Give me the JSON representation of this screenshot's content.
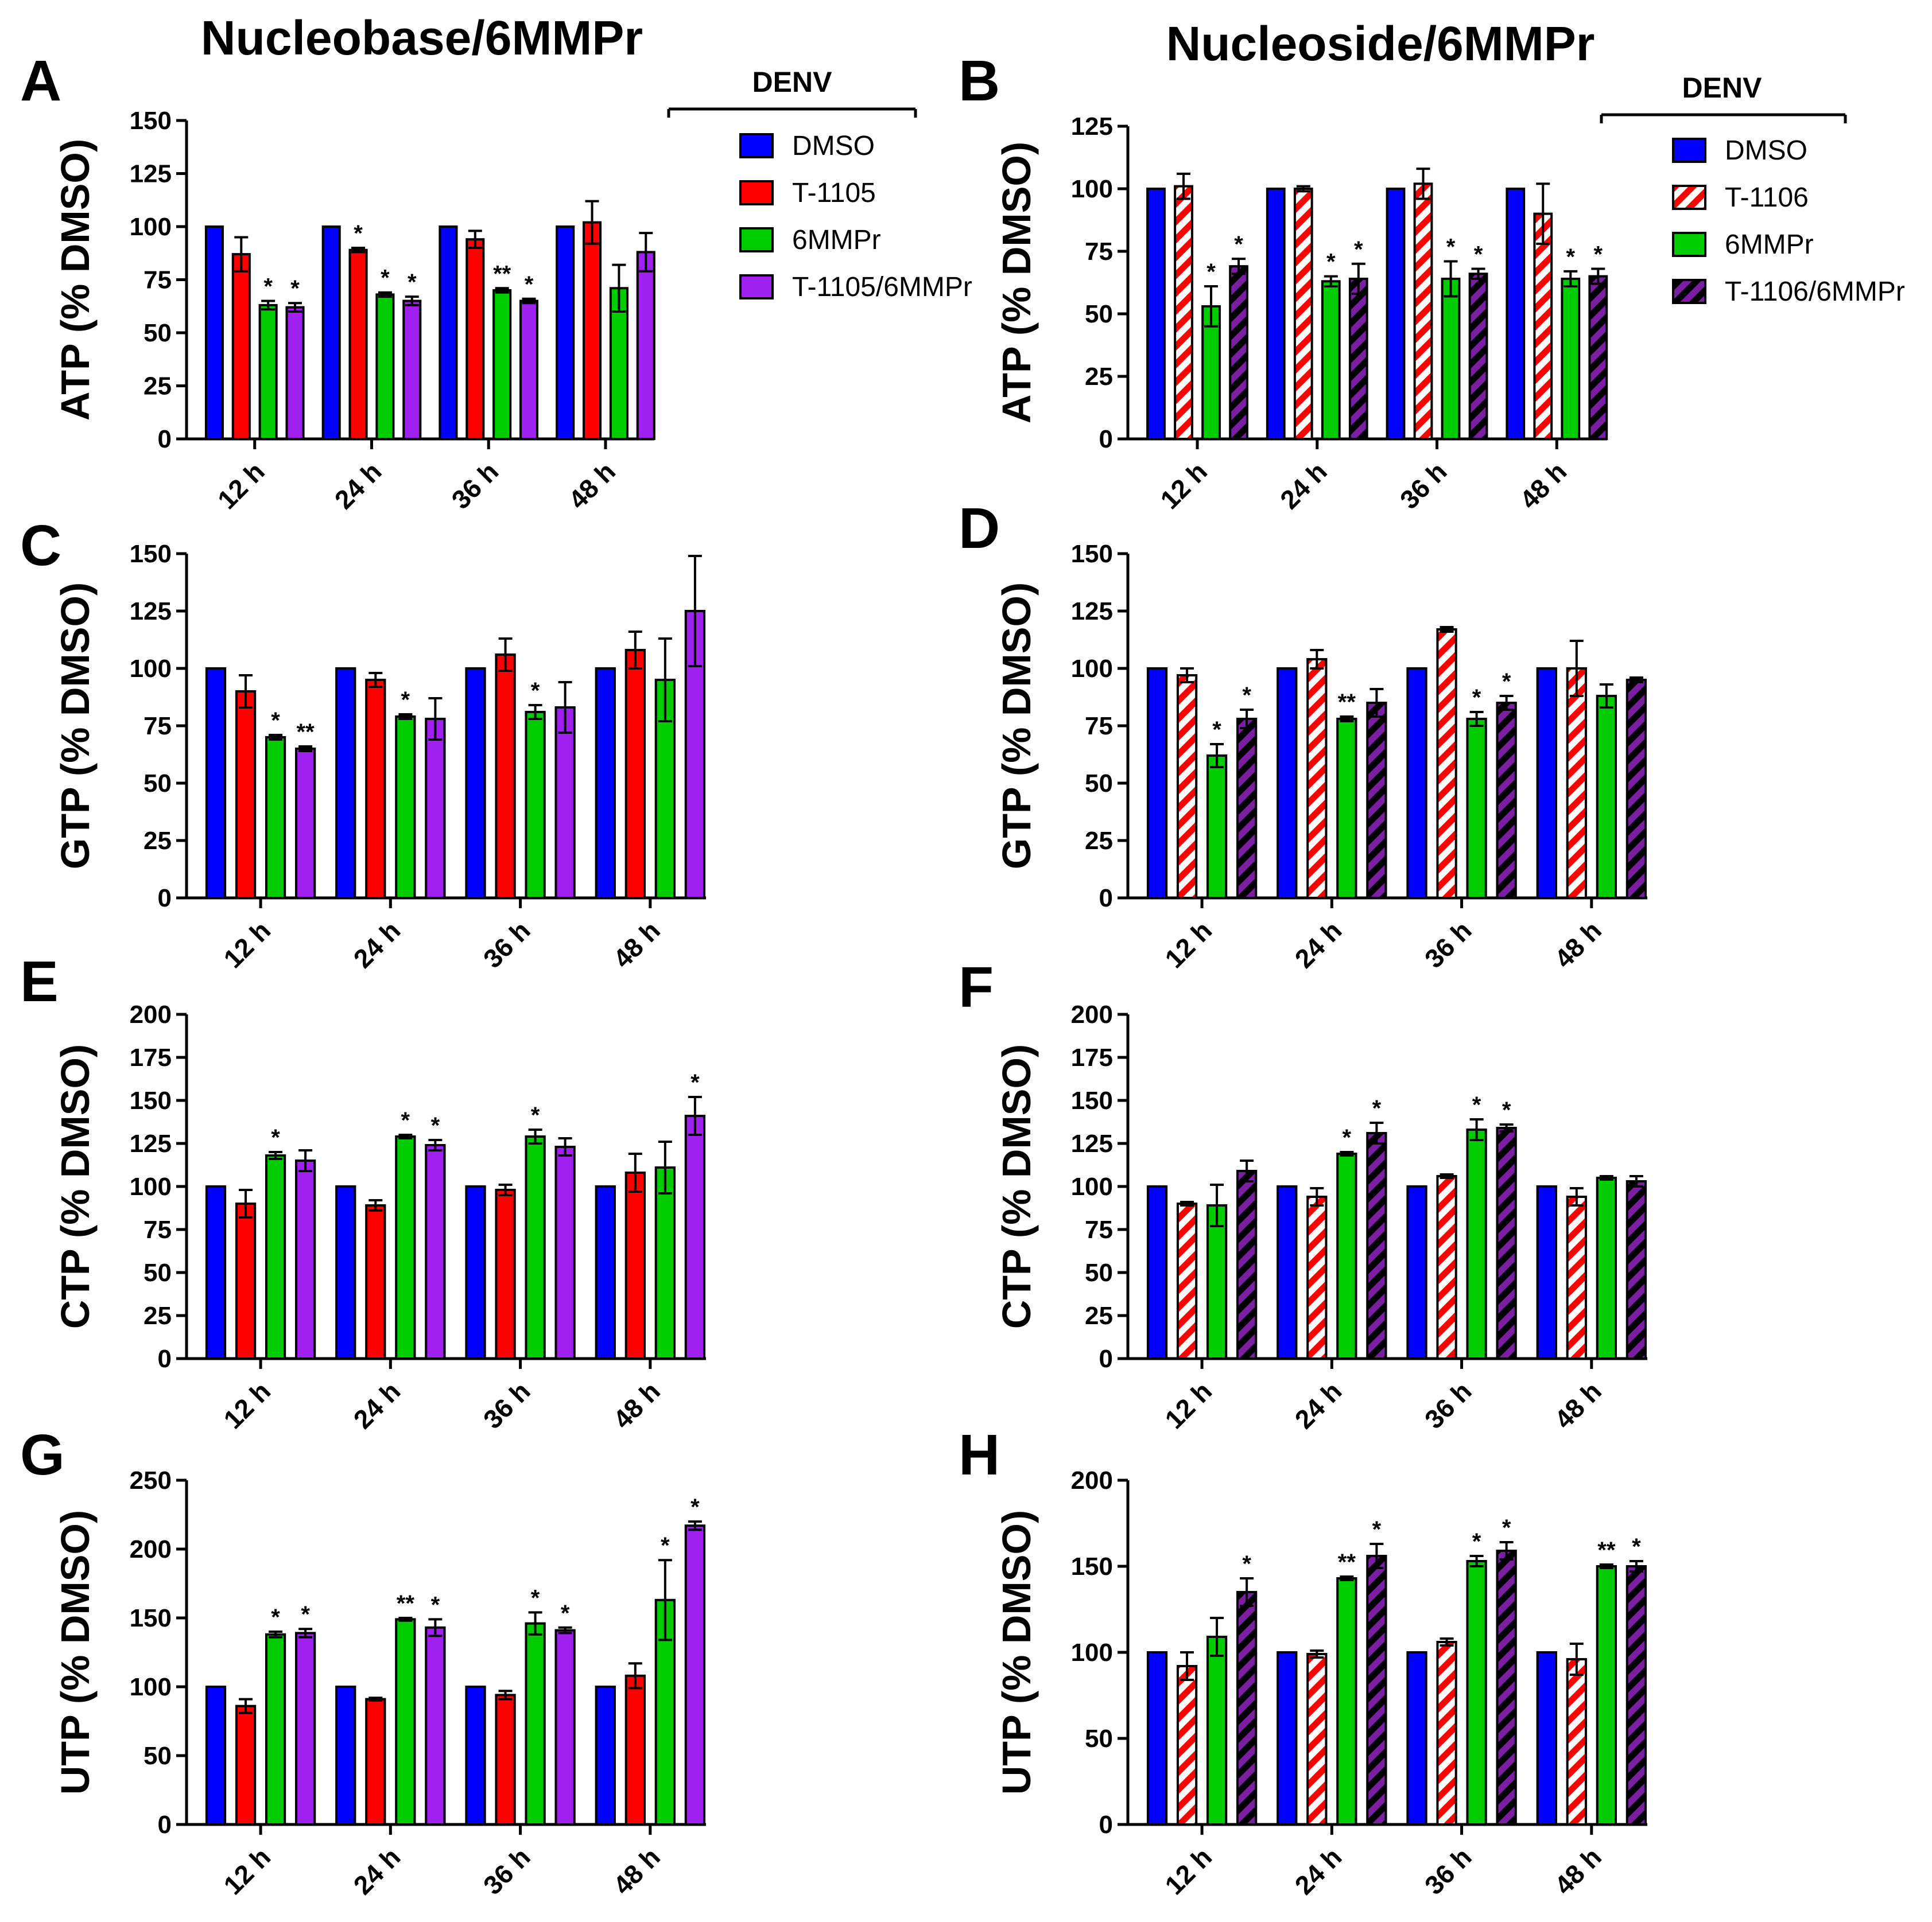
{
  "figure": {
    "col_titles": {
      "left": "Nucleobase/6MMPr",
      "right": "Nucleoside/6MMPr"
    },
    "legends": {
      "left": {
        "title": "DENV",
        "items": [
          {
            "label": "DMSO",
            "color": "#0000ff",
            "pattern": "solid"
          },
          {
            "label": "T-1105",
            "color": "#ff0000",
            "pattern": "solid"
          },
          {
            "label": "6MMPr",
            "color": "#00cc00",
            "pattern": "solid"
          },
          {
            "label": "T-1105/6MMPr",
            "color": "#a020f0",
            "pattern": "solid"
          }
        ]
      },
      "right": {
        "title": "DENV",
        "items": [
          {
            "label": "DMSO",
            "color": "#0000ff",
            "pattern": "solid"
          },
          {
            "label": "T-1106",
            "color": "#ff0000",
            "pattern": "hatch"
          },
          {
            "label": "6MMPr",
            "color": "#00cc00",
            "pattern": "solid"
          },
          {
            "label": "T-1106/6MMPr",
            "color": "#7b1fa2",
            "pattern": "hatch"
          }
        ]
      }
    }
  },
  "chart_data": [
    {
      "panel": "A",
      "type": "bar",
      "ylabel": "ATP (% DMSO)",
      "ylim": [
        0,
        150
      ],
      "yticks": [
        "0",
        "25",
        "50",
        "75",
        "100",
        "125",
        "150"
      ],
      "categories": [
        "12 h",
        "24 h",
        "36 h",
        "48 h"
      ],
      "legend": "left",
      "series": [
        {
          "name": "DMSO",
          "values": [
            100,
            100,
            100,
            100
          ],
          "errors": [
            0,
            0,
            0,
            0
          ],
          "stars": [
            "",
            "",
            "",
            ""
          ]
        },
        {
          "name": "T-1105",
          "values": [
            87,
            89,
            94,
            102
          ],
          "errors": [
            8,
            1,
            4,
            10
          ],
          "stars": [
            "",
            "*",
            "",
            ""
          ]
        },
        {
          "name": "6MMPr",
          "values": [
            63,
            68,
            70,
            71
          ],
          "errors": [
            2,
            1,
            1,
            11
          ],
          "stars": [
            "*",
            "*",
            "**",
            ""
          ]
        },
        {
          "name": "T-1105/6MMPr",
          "values": [
            62,
            65,
            65,
            88
          ],
          "errors": [
            2,
            2,
            1,
            9
          ],
          "stars": [
            "*",
            "*",
            "*",
            ""
          ]
        }
      ]
    },
    {
      "panel": "B",
      "type": "bar",
      "ylabel": "ATP (% DMSO)",
      "ylim": [
        0,
        125
      ],
      "yticks": [
        "0",
        "25",
        "50",
        "75",
        "100",
        "125"
      ],
      "categories": [
        "12 h",
        "24 h",
        "36 h",
        "48 h"
      ],
      "legend": "right",
      "series": [
        {
          "name": "DMSO",
          "values": [
            100,
            100,
            100,
            100
          ],
          "errors": [
            0,
            0,
            0,
            0
          ],
          "stars": [
            "",
            "",
            "",
            ""
          ]
        },
        {
          "name": "T-1106",
          "values": [
            101,
            100,
            102,
            90
          ],
          "errors": [
            5,
            1,
            6,
            12
          ],
          "stars": [
            "",
            "",
            "",
            ""
          ]
        },
        {
          "name": "6MMPr",
          "values": [
            53,
            63,
            64,
            64
          ],
          "errors": [
            8,
            2,
            7,
            3
          ],
          "stars": [
            "*",
            "*",
            "*",
            "*"
          ]
        },
        {
          "name": "T-1106/6MMPr",
          "values": [
            69,
            64,
            66,
            65
          ],
          "errors": [
            3,
            6,
            2,
            3
          ],
          "stars": [
            "*",
            "*",
            "*",
            "*"
          ]
        }
      ]
    },
    {
      "panel": "C",
      "type": "bar",
      "ylabel": "GTP (% DMSO)",
      "ylim": [
        0,
        150
      ],
      "yticks": [
        "0",
        "25",
        "50",
        "75",
        "100",
        "125",
        "150"
      ],
      "categories": [
        "12 h",
        "24 h",
        "36 h",
        "48 h"
      ],
      "legend": "left",
      "series": [
        {
          "name": "DMSO",
          "values": [
            100,
            100,
            100,
            100
          ],
          "errors": [
            0,
            0,
            0,
            0
          ],
          "stars": [
            "",
            "",
            "",
            ""
          ]
        },
        {
          "name": "T-1105",
          "values": [
            90,
            95,
            106,
            108
          ],
          "errors": [
            7,
            3,
            7,
            8
          ],
          "stars": [
            "",
            "",
            "",
            ""
          ]
        },
        {
          "name": "6MMPr",
          "values": [
            70,
            79,
            81,
            95
          ],
          "errors": [
            1,
            1,
            3,
            18
          ],
          "stars": [
            "*",
            "*",
            "*",
            ""
          ]
        },
        {
          "name": "T-1105/6MMPr",
          "values": [
            65,
            78,
            83,
            125
          ],
          "errors": [
            1,
            9,
            11,
            24
          ],
          "stars": [
            "**",
            "",
            "",
            ""
          ]
        }
      ]
    },
    {
      "panel": "D",
      "type": "bar",
      "ylabel": "GTP (% DMSO)",
      "ylim": [
        0,
        150
      ],
      "yticks": [
        "0",
        "25",
        "50",
        "75",
        "100",
        "125",
        "150"
      ],
      "categories": [
        "12 h",
        "24 h",
        "36 h",
        "48 h"
      ],
      "legend": "right",
      "series": [
        {
          "name": "DMSO",
          "values": [
            100,
            100,
            100,
            100
          ],
          "errors": [
            0,
            0,
            0,
            0
          ],
          "stars": [
            "",
            "",
            "",
            ""
          ]
        },
        {
          "name": "T-1106",
          "values": [
            97,
            104,
            117,
            100
          ],
          "errors": [
            3,
            4,
            1,
            12
          ],
          "stars": [
            "",
            "",
            "",
            ""
          ]
        },
        {
          "name": "6MMPr",
          "values": [
            62,
            78,
            78,
            88
          ],
          "errors": [
            5,
            1,
            3,
            5
          ],
          "stars": [
            "*",
            "**",
            "*",
            ""
          ]
        },
        {
          "name": "T-1106/6MMPr",
          "values": [
            78,
            85,
            85,
            95
          ],
          "errors": [
            4,
            6,
            3,
            1
          ],
          "stars": [
            "*",
            "",
            "*",
            ""
          ]
        }
      ]
    },
    {
      "panel": "E",
      "type": "bar",
      "ylabel": "CTP (% DMSO)",
      "ylim": [
        0,
        200
      ],
      "yticks": [
        "0",
        "25",
        "50",
        "75",
        "100",
        "125",
        "150",
        "175",
        "200"
      ],
      "categories": [
        "12 h",
        "24 h",
        "36 h",
        "48 h"
      ],
      "legend": "left",
      "series": [
        {
          "name": "DMSO",
          "values": [
            100,
            100,
            100,
            100
          ],
          "errors": [
            0,
            0,
            0,
            0
          ],
          "stars": [
            "",
            "",
            "",
            ""
          ]
        },
        {
          "name": "T-1105",
          "values": [
            90,
            89,
            98,
            108
          ],
          "errors": [
            8,
            3,
            3,
            11
          ],
          "stars": [
            "",
            "",
            "",
            ""
          ]
        },
        {
          "name": "6MMPr",
          "values": [
            118,
            129,
            129,
            111
          ],
          "errors": [
            2,
            1,
            4,
            15
          ],
          "stars": [
            "*",
            "*",
            "*",
            ""
          ]
        },
        {
          "name": "T-1105/6MMPr",
          "values": [
            115,
            124,
            123,
            141
          ],
          "errors": [
            6,
            3,
            5,
            11
          ],
          "stars": [
            "",
            "*",
            "",
            "*"
          ]
        }
      ]
    },
    {
      "panel": "F",
      "type": "bar",
      "ylabel": "CTP (% DMSO)",
      "ylim": [
        0,
        200
      ],
      "yticks": [
        "0",
        "25",
        "50",
        "75",
        "100",
        "125",
        "150",
        "175",
        "200"
      ],
      "categories": [
        "12 h",
        "24 h",
        "36 h",
        "48 h"
      ],
      "legend": "right",
      "series": [
        {
          "name": "DMSO",
          "values": [
            100,
            100,
            100,
            100
          ],
          "errors": [
            0,
            0,
            0,
            0
          ],
          "stars": [
            "",
            "",
            "",
            ""
          ]
        },
        {
          "name": "T-1106",
          "values": [
            90,
            94,
            106,
            94
          ],
          "errors": [
            1,
            5,
            1,
            5
          ],
          "stars": [
            "",
            "",
            "",
            ""
          ]
        },
        {
          "name": "6MMPr",
          "values": [
            89,
            119,
            133,
            105
          ],
          "errors": [
            12,
            1,
            6,
            1
          ],
          "stars": [
            "",
            "*",
            "*",
            ""
          ]
        },
        {
          "name": "T-1106/6MMPr",
          "values": [
            109,
            131,
            134,
            103
          ],
          "errors": [
            6,
            6,
            2,
            3
          ],
          "stars": [
            "",
            "*",
            "*",
            ""
          ]
        }
      ]
    },
    {
      "panel": "G",
      "type": "bar",
      "ylabel": "UTP (% DMSO)",
      "ylim": [
        0,
        250
      ],
      "yticks": [
        "0",
        "50",
        "100",
        "150",
        "200",
        "250"
      ],
      "categories": [
        "12 h",
        "24 h",
        "36 h",
        "48 h"
      ],
      "legend": "left",
      "series": [
        {
          "name": "DMSO",
          "values": [
            100,
            100,
            100,
            100
          ],
          "errors": [
            0,
            0,
            0,
            0
          ],
          "stars": [
            "",
            "",
            "",
            ""
          ]
        },
        {
          "name": "T-1105",
          "values": [
            86,
            91,
            94,
            108
          ],
          "errors": [
            5,
            1,
            3,
            9
          ],
          "stars": [
            "",
            "",
            "",
            ""
          ]
        },
        {
          "name": "6MMPr",
          "values": [
            138,
            149,
            146,
            163
          ],
          "errors": [
            2,
            1,
            8,
            29
          ],
          "stars": [
            "*",
            "**",
            "*",
            "*"
          ]
        },
        {
          "name": "T-1105/6MMPr",
          "values": [
            139,
            143,
            141,
            217
          ],
          "errors": [
            3,
            6,
            2,
            3
          ],
          "stars": [
            "*",
            "*",
            "*",
            "*"
          ]
        }
      ]
    },
    {
      "panel": "H",
      "type": "bar",
      "ylabel": "UTP (% DMSO)",
      "ylim": [
        0,
        200
      ],
      "yticks": [
        "0",
        "50",
        "100",
        "150",
        "200"
      ],
      "categories": [
        "12 h",
        "24 h",
        "36 h",
        "48 h"
      ],
      "legend": "right",
      "series": [
        {
          "name": "DMSO",
          "values": [
            100,
            100,
            100,
            100
          ],
          "errors": [
            0,
            0,
            0,
            0
          ],
          "stars": [
            "",
            "",
            "",
            ""
          ]
        },
        {
          "name": "T-1106",
          "values": [
            92,
            99,
            106,
            96
          ],
          "errors": [
            8,
            2,
            2,
            9
          ],
          "stars": [
            "",
            "",
            "",
            ""
          ]
        },
        {
          "name": "6MMPr",
          "values": [
            109,
            143,
            153,
            150
          ],
          "errors": [
            11,
            1,
            3,
            1
          ],
          "stars": [
            "",
            "**",
            "*",
            "**"
          ]
        },
        {
          "name": "T-1106/6MMPr",
          "values": [
            135,
            156,
            159,
            150
          ],
          "errors": [
            8,
            7,
            5,
            3
          ],
          "stars": [
            "*",
            "*",
            "*",
            "*"
          ]
        }
      ]
    }
  ]
}
